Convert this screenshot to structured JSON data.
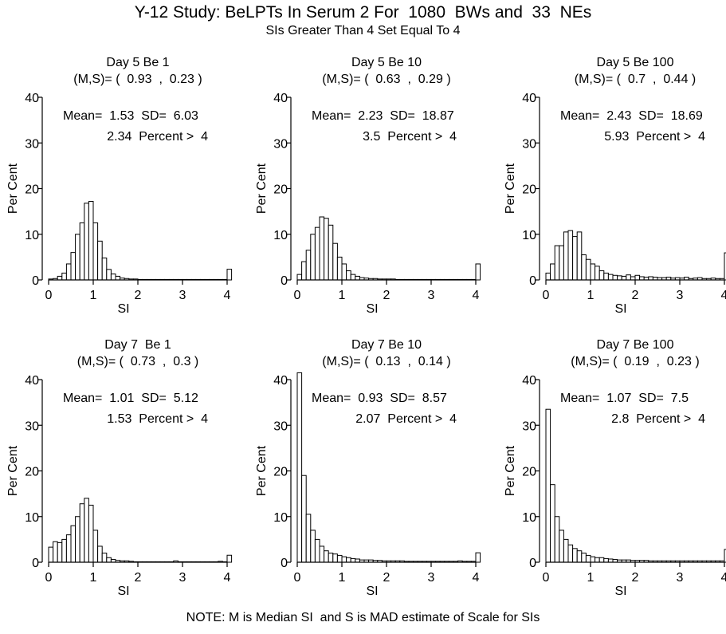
{
  "title": "Y-12 Study: BeLPTs In Serum 2 For  1080  BWs and  33  NEs",
  "subtitle": "SIs Greater Than 4 Set Equal To 4",
  "note": "NOTE: M is Median SI  and S is MAD estimate of Scale for SIs",
  "chart_data": [
    {
      "type": "bar",
      "title": "Day 5 Be 1",
      "ms": "(M,S)= (  0.93  ,  0.23 )",
      "stats_line1": "Mean=  1.53  SD=  6.03",
      "stats_line2": "2.34  Percent >  4",
      "xlabel": "SI",
      "ylabel": "Per Cent",
      "xlim": [
        0,
        4
      ],
      "ylim": [
        0,
        40
      ],
      "xticks": [
        "0",
        "1",
        "2",
        "3",
        "4"
      ],
      "yticks": [
        "0",
        "10",
        "20",
        "30",
        "40"
      ],
      "bin_width": 0.1,
      "values": [
        0.2,
        0.3,
        0.8,
        1.5,
        3.5,
        6.0,
        10.0,
        12.5,
        16.8,
        17.2,
        12.5,
        8.5,
        4.8,
        2.3,
        1.3,
        0.8,
        0.4,
        0.3,
        0.2,
        0.2,
        0.1,
        0.1,
        0.1,
        0.1,
        0.1,
        0.1,
        0.1,
        0.1,
        0.1,
        0.1,
        0.1,
        0.1,
        0.1,
        0.1,
        0.1,
        0.1,
        0.1,
        0.1,
        0.1,
        0.1,
        2.34
      ]
    },
    {
      "type": "bar",
      "title": "Day 5 Be 10",
      "ms": "(M,S)= (  0.63  ,  0.29 )",
      "stats_line1": "Mean=  2.23  SD=  18.87",
      "stats_line2": "3.5  Percent >  4",
      "xlabel": "SI",
      "ylabel": "Per Cent",
      "xlim": [
        0,
        4
      ],
      "ylim": [
        0,
        40
      ],
      "xticks": [
        "0",
        "1",
        "2",
        "3",
        "4"
      ],
      "yticks": [
        "0",
        "10",
        "20",
        "30",
        "40"
      ],
      "bin_width": 0.1,
      "values": [
        1.2,
        4.0,
        6.5,
        10.0,
        11.5,
        13.8,
        13.5,
        12.0,
        8.0,
        5.0,
        3.5,
        2.0,
        1.2,
        0.8,
        0.5,
        0.4,
        0.3,
        0.3,
        0.2,
        0.2,
        0.2,
        0.2,
        0.1,
        0.1,
        0.1,
        0.1,
        0.1,
        0.1,
        0.1,
        0.1,
        0.1,
        0.1,
        0.1,
        0.1,
        0.1,
        0.1,
        0.1,
        0.1,
        0.1,
        0.1,
        3.5
      ]
    },
    {
      "type": "bar",
      "title": "Day 5 Be 100",
      "ms": "(M,S)= (  0.7  ,  0.44 )",
      "stats_line1": "Mean=  2.43  SD=  18.69",
      "stats_line2": "5.93  Percent >  4",
      "xlabel": "SI",
      "ylabel": "Per Cent",
      "xlim": [
        0,
        4
      ],
      "ylim": [
        0,
        40
      ],
      "xticks": [
        "0",
        "1",
        "2",
        "3",
        "4"
      ],
      "yticks": [
        "0",
        "10",
        "20",
        "30",
        "40"
      ],
      "bin_width": 0.1,
      "values": [
        1.5,
        3.5,
        7.5,
        7.5,
        10.5,
        10.8,
        9.5,
        10.5,
        5.5,
        4.5,
        3.5,
        3.0,
        2.0,
        1.5,
        1.2,
        1.0,
        0.9,
        0.8,
        1.1,
        0.7,
        1.0,
        0.7,
        0.6,
        0.7,
        0.6,
        0.5,
        0.5,
        0.6,
        0.4,
        0.5,
        0.4,
        0.6,
        0.3,
        0.4,
        0.5,
        0.3,
        0.3,
        0.4,
        0.3,
        0.3,
        5.93
      ]
    },
    {
      "type": "bar",
      "title": "Day 7  Be 1",
      "ms": "(M,S)= (  0.73  ,  0.3 )",
      "stats_line1": "Mean=  1.01  SD=  5.12",
      "stats_line2": "1.53  Percent >  4",
      "xlabel": "SI",
      "ylabel": "Per Cent",
      "xlim": [
        0,
        4
      ],
      "ylim": [
        0,
        40
      ],
      "xticks": [
        "0",
        "1",
        "2",
        "3",
        "4"
      ],
      "yticks": [
        "0",
        "10",
        "20",
        "30",
        "40"
      ],
      "bin_width": 0.1,
      "values": [
        3.3,
        4.5,
        4.3,
        5.0,
        6.0,
        8.0,
        10.0,
        12.8,
        14.0,
        12.5,
        7.0,
        3.5,
        2.0,
        1.0,
        0.6,
        0.4,
        0.3,
        0.3,
        0.2,
        0.1,
        0.1,
        0.1,
        0.1,
        0.1,
        0.1,
        0.1,
        0.1,
        0.1,
        0.3,
        0.1,
        0.1,
        0.1,
        0.1,
        0.1,
        0.1,
        0.1,
        0.1,
        0.1,
        0.2,
        0.1,
        1.53
      ]
    },
    {
      "type": "bar",
      "title": "Day 7 Be 10",
      "ms": "(M,S)= (  0.13  ,  0.14 )",
      "stats_line1": "Mean=  0.93  SD=  8.57",
      "stats_line2": "2.07  Percent >  4",
      "xlabel": "SI",
      "ylabel": "Per Cent",
      "xlim": [
        0,
        4
      ],
      "ylim": [
        0,
        40
      ],
      "xticks": [
        "0",
        "1",
        "2",
        "3",
        "4"
      ],
      "yticks": [
        "0",
        "10",
        "20",
        "30",
        "40"
      ],
      "bin_width": 0.1,
      "values": [
        41.5,
        19.0,
        10.5,
        7.0,
        5.0,
        3.5,
        2.5,
        2.0,
        1.8,
        1.5,
        1.2,
        1.0,
        0.8,
        0.7,
        0.5,
        0.5,
        0.5,
        0.4,
        0.4,
        0.3,
        0.3,
        0.3,
        0.3,
        0.3,
        0.2,
        0.2,
        0.2,
        0.2,
        0.2,
        0.2,
        0.2,
        0.2,
        0.2,
        0.2,
        0.2,
        0.2,
        0.3,
        0.2,
        0.2,
        0.2,
        2.07
      ]
    },
    {
      "type": "bar",
      "title": "Day 7 Be 100",
      "ms": "(M,S)= (  0.19  ,  0.23 )",
      "stats_line1": "Mean=  1.07  SD=  7.5",
      "stats_line2": "2.8  Percent >  4",
      "xlabel": "SI",
      "ylabel": "Per Cent",
      "xlim": [
        0,
        4
      ],
      "ylim": [
        0,
        40
      ],
      "xticks": [
        "0",
        "1",
        "2",
        "3",
        "4"
      ],
      "yticks": [
        "0",
        "10",
        "20",
        "30",
        "40"
      ],
      "bin_width": 0.1,
      "values": [
        33.5,
        17.0,
        10.0,
        7.0,
        5.0,
        3.8,
        3.0,
        2.5,
        2.0,
        1.5,
        1.2,
        1.0,
        1.0,
        0.8,
        0.7,
        0.6,
        0.5,
        0.5,
        0.5,
        0.4,
        0.4,
        0.4,
        0.4,
        0.3,
        0.3,
        0.3,
        0.3,
        0.3,
        0.3,
        0.3,
        0.3,
        0.3,
        0.3,
        0.3,
        0.3,
        0.3,
        0.3,
        0.3,
        0.3,
        0.3,
        2.8
      ]
    }
  ]
}
